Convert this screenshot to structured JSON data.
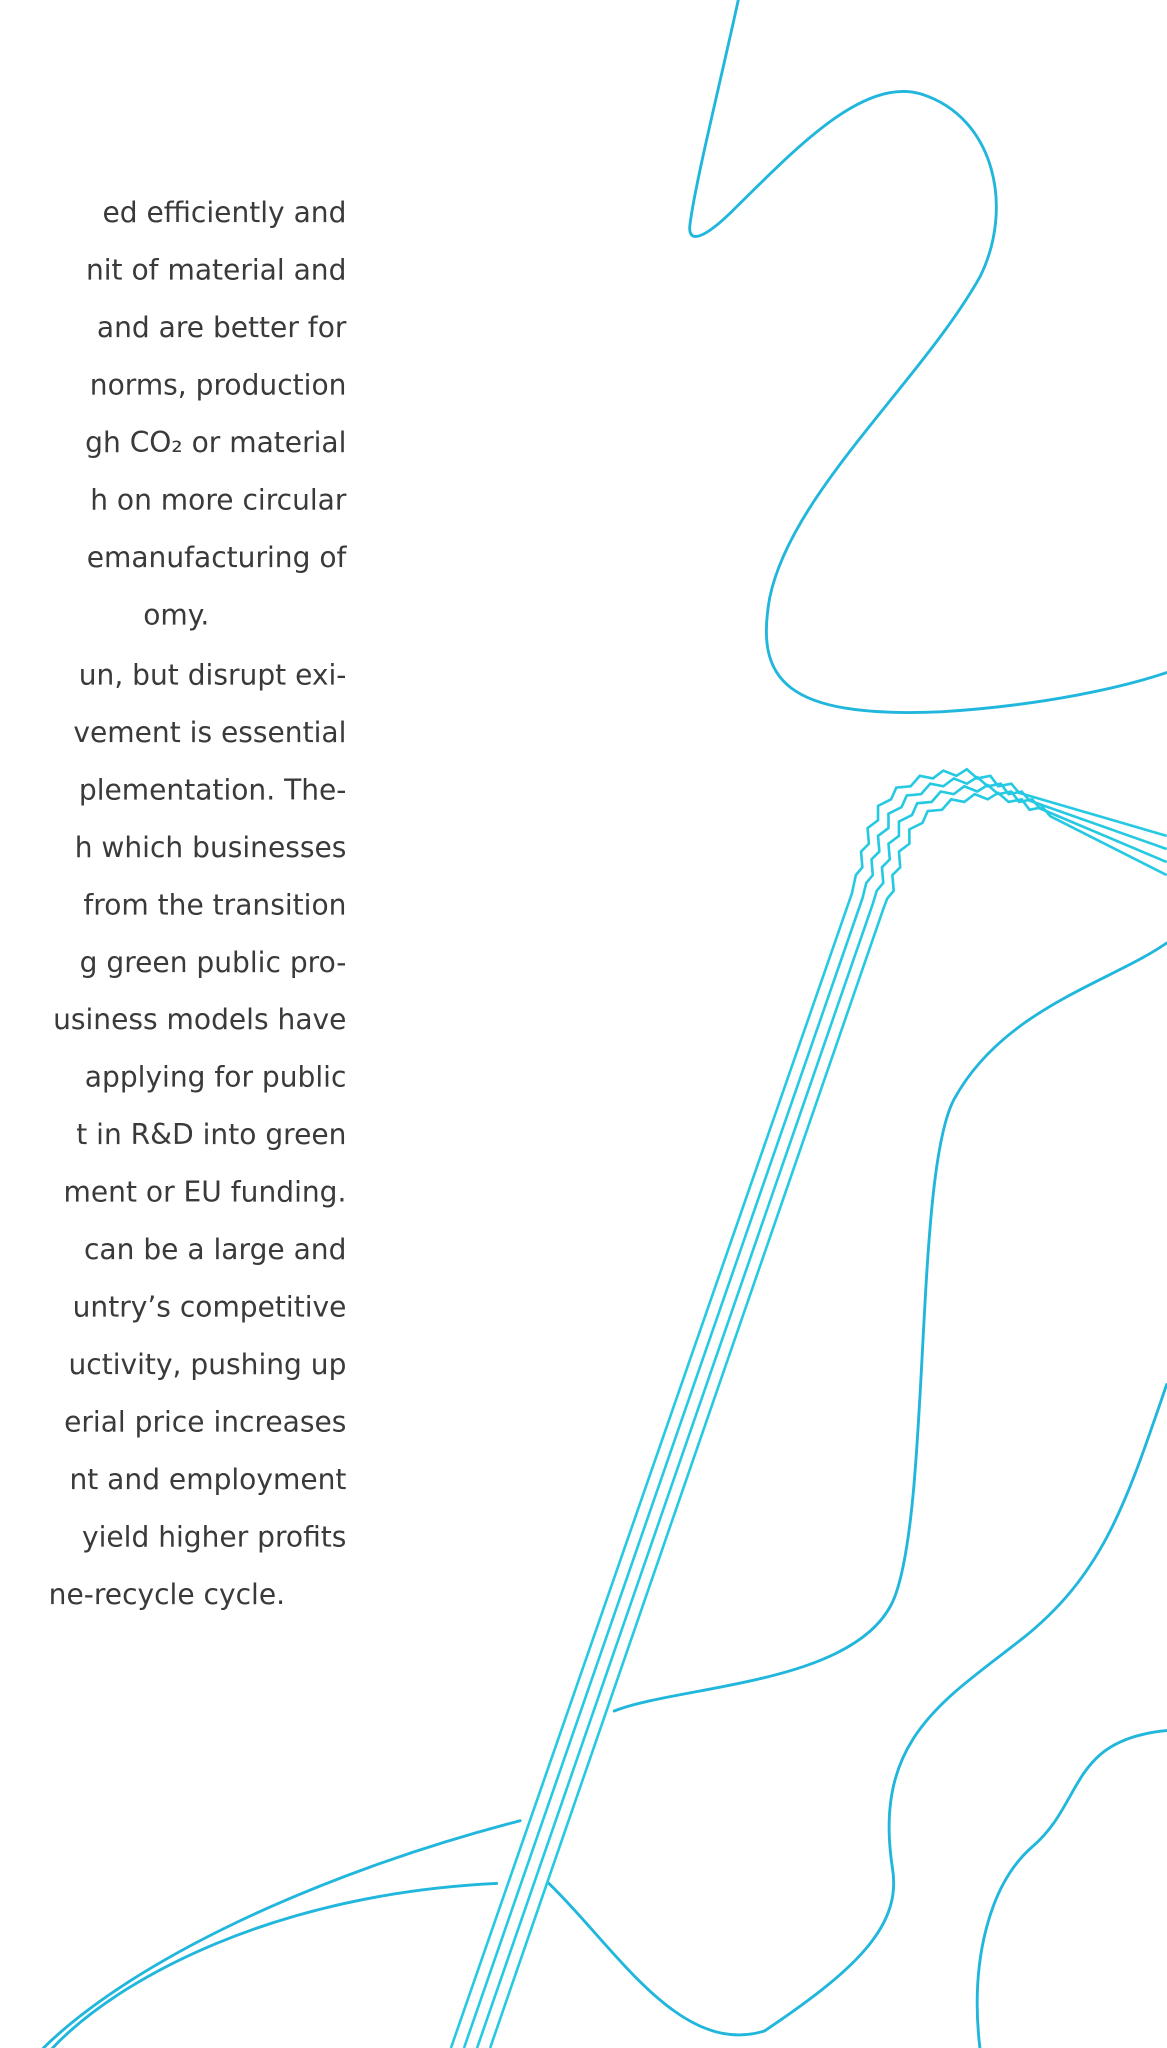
{
  "lines": [
    "ed efficiently and",
    "nit of material and",
    "and are better for",
    "norms, production",
    "gh CO₂ or material",
    "h on more circular",
    "emanufacturing of",
    "omy.",
    "un, but disrupt exi-",
    "vement is essential",
    "plementation. The-",
    "h which businesses",
    "from the transition",
    "g green public pro-",
    "usiness models have",
    "applying for public",
    "t in R&D into green",
    "ment or EU funding.",
    "can be a large and",
    "untry’s competitive",
    "uctivity, pushing up",
    "erial price increases",
    "nt and employment",
    "yield higher profits",
    "ne-recycle cycle."
  ]
}
